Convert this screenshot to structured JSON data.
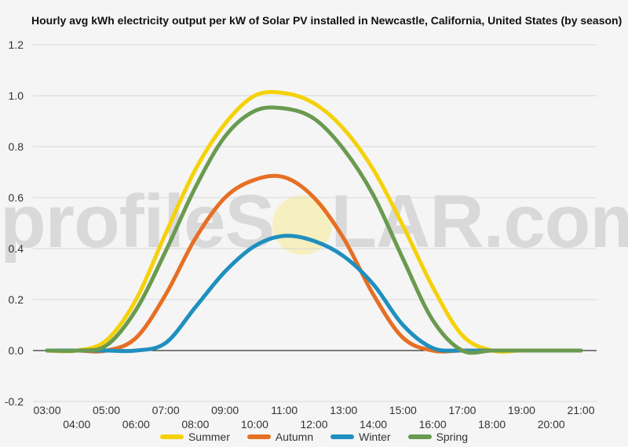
{
  "chart_data": {
    "type": "line",
    "title": "Hourly avg kWh electricity output per kW of Solar PV installed in Newcastle, California, United States (by season)",
    "xlabel": "",
    "ylabel": "",
    "watermark": {
      "left": "profileS",
      "right": "LAR.com"
    },
    "ylim": [
      -0.2,
      1.2
    ],
    "y_ticks": [
      -0.2,
      0.0,
      0.2,
      0.4,
      0.6,
      0.8,
      1.0,
      1.2
    ],
    "y_tick_labels": [
      "-0.2",
      "0.0",
      "0.2",
      "0.4",
      "0.6",
      "0.8",
      "1.0",
      "1.2"
    ],
    "x_ticks_row1": [
      "03:00",
      "05:00",
      "07:00",
      "09:00",
      "11:00",
      "13:00",
      "15:00",
      "17:00",
      "19:00",
      "21:00"
    ],
    "x_ticks_row2": [
      "04:00",
      "06:00",
      "08:00",
      "10:00",
      "12:00",
      "14:00",
      "16:00",
      "18:00",
      "20:00"
    ],
    "x": [
      "03:00",
      "04:00",
      "05:00",
      "06:00",
      "07:00",
      "08:00",
      "09:00",
      "10:00",
      "11:00",
      "12:00",
      "13:00",
      "14:00",
      "15:00",
      "16:00",
      "17:00",
      "18:00",
      "19:00",
      "20:00",
      "21:00"
    ],
    "grid": true,
    "legend_position": "bottom",
    "series": [
      {
        "name": "Summer",
        "color": "#f5d10a",
        "values": [
          0.0,
          0.0,
          0.04,
          0.2,
          0.46,
          0.71,
          0.89,
          1.0,
          1.01,
          0.97,
          0.87,
          0.71,
          0.49,
          0.25,
          0.06,
          0.0,
          0.0,
          0.0,
          0.0
        ]
      },
      {
        "name": "Autumn",
        "color": "#e66f24",
        "values": [
          0.0,
          0.0,
          0.0,
          0.05,
          0.22,
          0.44,
          0.6,
          0.67,
          0.68,
          0.6,
          0.44,
          0.22,
          0.05,
          0.0,
          0.0,
          0.0,
          0.0,
          0.0,
          0.0
        ]
      },
      {
        "name": "Winter",
        "color": "#1f8fbf",
        "values": [
          0.0,
          0.0,
          0.0,
          0.0,
          0.03,
          0.17,
          0.31,
          0.41,
          0.45,
          0.43,
          0.37,
          0.26,
          0.1,
          0.01,
          0.0,
          0.0,
          0.0,
          0.0,
          0.0
        ]
      },
      {
        "name": "Spring",
        "color": "#6a9a50",
        "values": [
          0.0,
          0.0,
          0.02,
          0.16,
          0.39,
          0.64,
          0.84,
          0.94,
          0.95,
          0.91,
          0.79,
          0.61,
          0.36,
          0.12,
          0.0,
          0.0,
          0.0,
          0.0,
          0.0
        ]
      }
    ]
  }
}
